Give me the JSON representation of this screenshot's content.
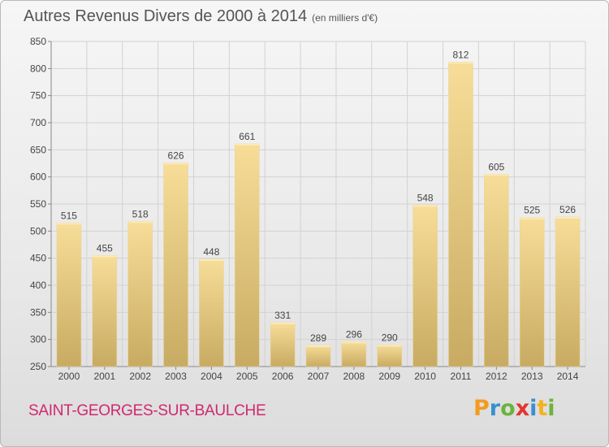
{
  "title": "Autres Revenus Divers de 2000 à 2014",
  "subtitle": "(en milliers d'€)",
  "commune": "SAINT-GEORGES-SUR-BAULCHE",
  "logo": {
    "text": "Proxiti",
    "colors": [
      "#f39b1f",
      "#3a8fd0",
      "#6cb33e",
      "#e4342e",
      "#3a8fd0",
      "#f3b21f",
      "#6cb33e"
    ]
  },
  "colors": {
    "bar_light": "#f6dc96",
    "bar_dark": "#c9ac64",
    "grid": "#d2d2d2",
    "axis_text": "#444444",
    "commune": "#d0286e"
  },
  "chart_data": {
    "type": "bar",
    "categories": [
      "2000",
      "2001",
      "2002",
      "2003",
      "2004",
      "2005",
      "2006",
      "2007",
      "2008",
      "2009",
      "2010",
      "2011",
      "2012",
      "2013",
      "2014"
    ],
    "values": [
      515,
      455,
      518,
      626,
      448,
      661,
      331,
      289,
      296,
      290,
      548,
      812,
      605,
      525,
      526
    ],
    "ylim": [
      250,
      850
    ],
    "yticks": [
      250,
      300,
      350,
      400,
      450,
      500,
      550,
      600,
      650,
      700,
      750,
      800,
      850
    ],
    "grid": true,
    "data_labels": true
  }
}
